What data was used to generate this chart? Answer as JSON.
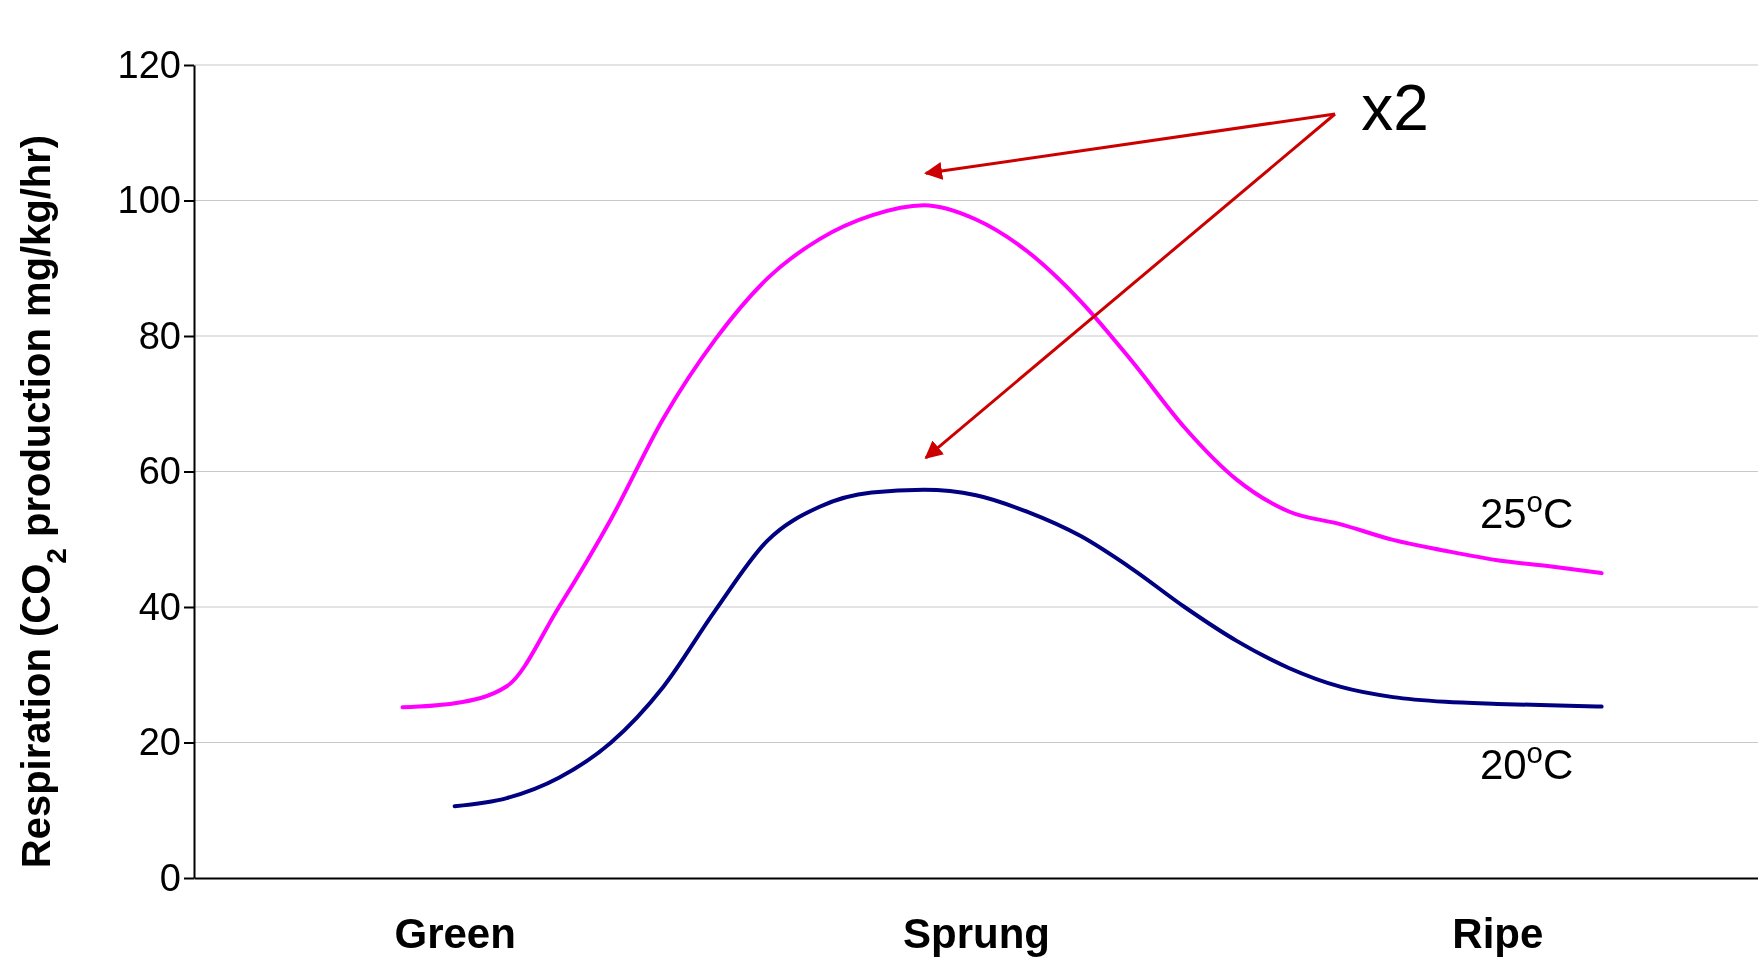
{
  "chart_data": {
    "type": "line",
    "ylabel": "Respiration (CO$_{2}$ production mg/kg/hr)",
    "categories": [
      null,
      null,
      null,
      null,
      null,
      "Green",
      null,
      null,
      null,
      null,
      null,
      null,
      null,
      null,
      null,
      "Sprung",
      null,
      null,
      null,
      null,
      null,
      null,
      null,
      null,
      null,
      "Ripe",
      null,
      null,
      null,
      null,
      null
    ],
    "ylim": [
      0,
      120
    ],
    "yticks": [
      0,
      20,
      40,
      60,
      80,
      100,
      120
    ],
    "grid": "y",
    "legend": false,
    "marker": "none",
    "line_style": "solid",
    "annotations": [
      "x2"
    ],
    "series": [
      {
        "name": "25$^{o}$C",
        "color": "#ff00ff",
        "values": [
          null,
          null,
          null,
          null,
          25.2,
          25.8,
          28.3,
          40,
          53,
          67.8,
          79.5,
          88.5,
          94.3,
          97.8,
          99.3,
          97.2,
          92.4,
          85.2,
          76.2,
          66.5,
          58.8,
          54.1,
          52.2,
          49.9,
          48.3,
          46.9,
          46,
          45,
          null,
          null,
          null
        ]
      },
      {
        "name": "20$^{o}$C",
        "color": "#000080",
        "values": [
          null,
          null,
          null,
          null,
          null,
          10.6,
          11.8,
          14.8,
          20,
          28.2,
          39.5,
          49.8,
          54.8,
          56.9,
          57.3,
          56.5,
          54,
          50.5,
          45.6,
          40,
          35,
          31,
          28.2,
          26.7,
          26,
          25.7,
          25.5,
          25.3,
          null,
          null,
          null
        ]
      }
    ]
  }
}
